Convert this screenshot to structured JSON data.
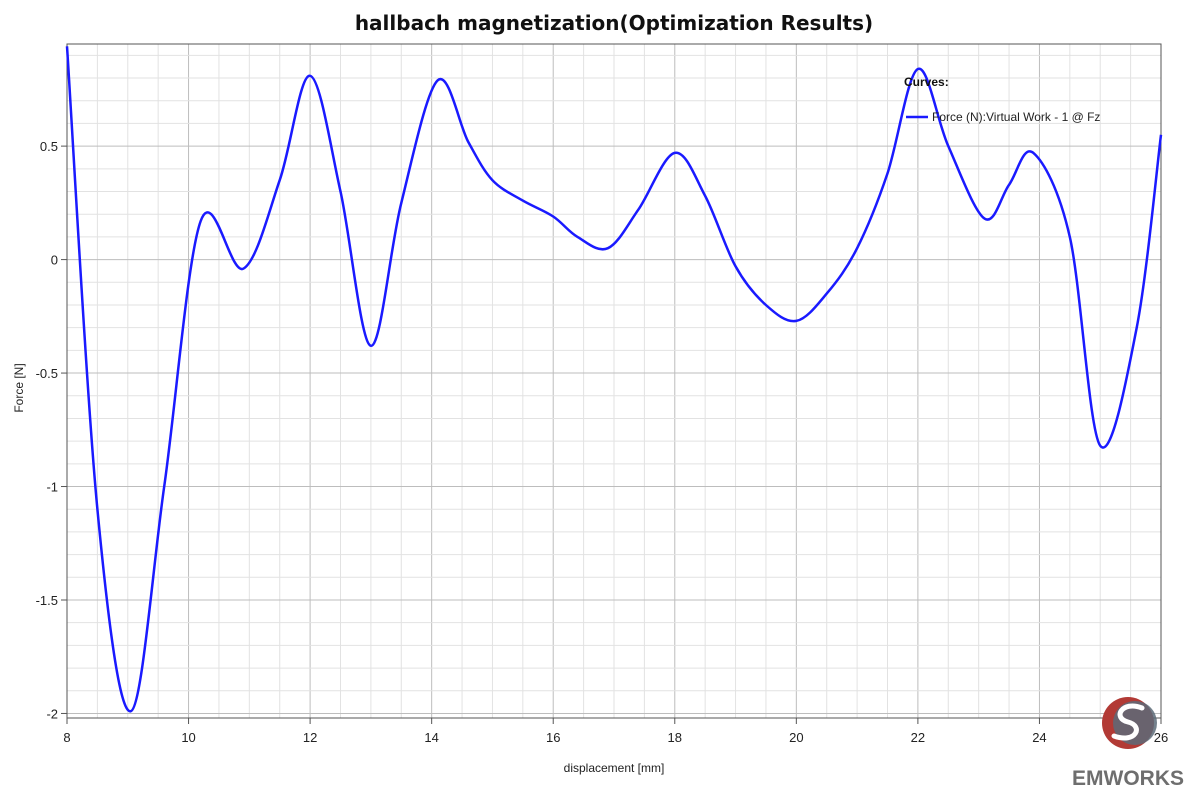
{
  "chart_data": {
    "type": "line",
    "title": "hallbach magnetization(Optimization Results)",
    "xlabel": "displacement [mm]",
    "ylabel": "Force [N]",
    "xlim": [
      8,
      26
    ],
    "ylim": [
      -2.02,
      0.95
    ],
    "x_ticks": [
      "8",
      "10",
      "12",
      "14",
      "16",
      "18",
      "20",
      "22",
      "24",
      "26"
    ],
    "y_ticks": [
      "-2",
      "-1.5",
      "-1",
      "-0.5",
      "0",
      "0.5"
    ],
    "grid": true,
    "legend": {
      "title": "Curves:",
      "placement": "top-right"
    },
    "series": [
      {
        "name": "Force (N):Virtual Work - 1 @ Fz",
        "color": "#1a1aff",
        "x": [
          8.0,
          8.5,
          9.05,
          9.6,
          10.2,
          10.9,
          11.5,
          12.0,
          12.5,
          13.0,
          13.5,
          14.1,
          14.6,
          15.0,
          15.5,
          16.0,
          16.4,
          16.9,
          17.4,
          18.0,
          18.5,
          19.0,
          19.5,
          20.0,
          20.5,
          21.0,
          21.5,
          22.0,
          22.5,
          23.1,
          23.5,
          23.9,
          24.5,
          25.0,
          25.6,
          26.0
        ],
        "y": [
          0.94,
          -1.1,
          -1.99,
          -1.0,
          0.17,
          -0.04,
          0.35,
          0.81,
          0.3,
          -0.38,
          0.25,
          0.79,
          0.52,
          0.35,
          0.26,
          0.19,
          0.1,
          0.05,
          0.22,
          0.47,
          0.28,
          -0.03,
          -0.2,
          -0.27,
          -0.15,
          0.05,
          0.38,
          0.84,
          0.5,
          0.18,
          0.33,
          0.47,
          0.1,
          -0.82,
          -0.3,
          0.55
        ]
      }
    ]
  },
  "logo": {
    "text": "EMWORKS"
  }
}
